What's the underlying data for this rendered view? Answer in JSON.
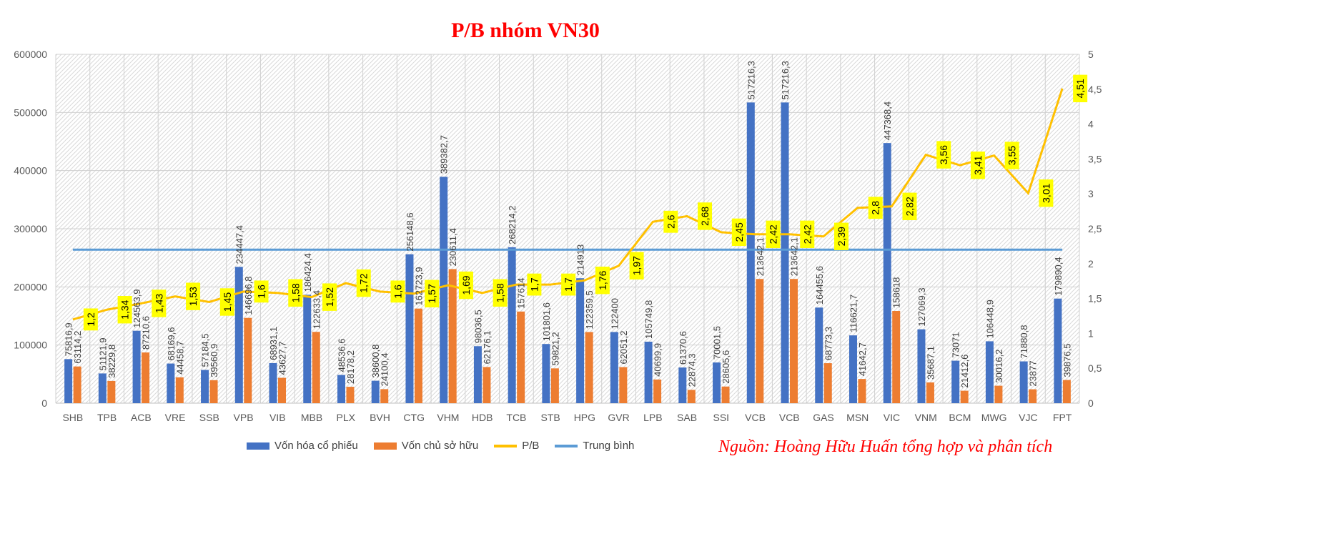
{
  "title": "P/B nhóm VN30",
  "source": "Nguồn: Hoàng Hữu Huấn tổng hợp và phân tích",
  "colors": {
    "title": "#ff0000",
    "source": "#ff0000",
    "market_cap": "#4472c4",
    "equity": "#ed7d31",
    "pb": "#ffc000",
    "average": "#5b9bd5",
    "label_box": "#ffff00",
    "axis_text": "#595959"
  },
  "legend": [
    {
      "label": "Vốn hóa cổ phiếu",
      "kind": "bar",
      "color": "#4472c4"
    },
    {
      "label": "Vốn chủ sở hữu",
      "kind": "bar",
      "color": "#ed7d31"
    },
    {
      "label": "P/B",
      "kind": "line",
      "color": "#ffc000"
    },
    {
      "label": "Trung bình",
      "kind": "line",
      "color": "#5b9bd5"
    }
  ],
  "chart_data": {
    "type": "bar",
    "categories": [
      "SHB",
      "TPB",
      "ACB",
      "VRE",
      "SSB",
      "VPB",
      "VIB",
      "MBB",
      "PLX",
      "BVH",
      "CTG",
      "VHM",
      "HDB",
      "TCB",
      "STB",
      "HPG",
      "GVR",
      "LPB",
      "SAB",
      "SSI",
      "VCB",
      "VCB",
      "GAS",
      "MSN",
      "VIC",
      "VNM",
      "BCM",
      "MWG",
      "VJC",
      "FPT"
    ],
    "series": [
      {
        "name": "Vốn hóa cổ phiếu",
        "type": "bar",
        "axis": "left",
        "values": [
          75816.9,
          51121.9,
          124563.9,
          68169.6,
          57184.5,
          234447.4,
          68931.1,
          186424.4,
          48536.6,
          38600.8,
          256148.6,
          389382.7,
          98036.5,
          268214.2,
          101801.6,
          214913,
          122400,
          105749.8,
          61370.6,
          70001.5,
          517216.3,
          517216.3,
          164455.6,
          116621.7,
          447368.4,
          127069.3,
          73071,
          106448.9,
          71880.8,
          179890.4
        ],
        "labels": [
          "75816,9",
          "51121,9",
          "124563,9",
          "68169,6",
          "57184,5",
          "234447,4",
          "68931,1",
          "186424,4",
          "48536,6",
          "38600,8",
          "256148,6",
          "389382,7",
          "98036,5",
          "268214,2",
          "101801,6",
          "214913",
          "122400",
          "105749,8",
          "61370,6",
          "70001,5",
          "517216,3",
          "517216,3",
          "164455,6",
          "116621,7",
          "447368,4",
          "127069,3",
          "73071",
          "106448,9",
          "71880,8",
          "179890,4"
        ]
      },
      {
        "name": "Vốn chủ sở hữu",
        "type": "bar",
        "axis": "left",
        "values": [
          63114.2,
          38229.8,
          87210.6,
          44458.7,
          39560.9,
          146696.8,
          43627.7,
          122633.4,
          28178.2,
          24100.4,
          162723.9,
          230611.4,
          62176.1,
          157614,
          59821.2,
          122359.5,
          62051.2,
          40699.9,
          22874.3,
          28605.6,
          213642.1,
          213642.1,
          68773.3,
          41642.7,
          158618,
          35687.1,
          21412.6,
          30016.2,
          23877,
          39876.5
        ],
        "labels": [
          "63114,2",
          "38229,8",
          "87210,6",
          "44458,7",
          "39560,9",
          "146696,8",
          "43627,7",
          "122633,4",
          "28178,2",
          "24100,4",
          "162723,9",
          "230611,4",
          "62176,1",
          "157614",
          "59821,2",
          "122359,5",
          "62051,2",
          "40699,9",
          "22874,3",
          "28605,6",
          "213642,1",
          "213642,1",
          "68773,3",
          "41642,7",
          "158618",
          "35687,1",
          "21412,6",
          "30016,2",
          "23877",
          "39876,5"
        ]
      },
      {
        "name": "P/B",
        "type": "line",
        "axis": "right",
        "values": [
          1.2,
          1.34,
          1.43,
          1.53,
          1.45,
          1.6,
          1.58,
          1.52,
          1.72,
          1.6,
          1.57,
          1.69,
          1.58,
          1.7,
          1.7,
          1.76,
          1.97,
          2.6,
          2.68,
          2.45,
          2.42,
          2.42,
          2.39,
          2.8,
          2.82,
          3.56,
          3.41,
          3.55,
          3.01,
          4.51
        ],
        "labels": [
          "1,2",
          "1,34",
          "1,43",
          "1,53",
          "1,45",
          "1,6",
          "1,58",
          "1,52",
          "1,72",
          "1,6",
          "1,57",
          "1,69",
          "1,58",
          "1,7",
          "1,7",
          "1,76",
          "1,97",
          "2,6",
          "2,68",
          "2,45",
          "2,42",
          "2,42",
          "2,39",
          "2,8",
          "2,82",
          "3,56",
          "3,41",
          "3,55",
          "3,01",
          "4,51"
        ]
      },
      {
        "name": "Trung bình",
        "type": "line",
        "axis": "right",
        "values": [
          2.2,
          2.2,
          2.2,
          2.2,
          2.2,
          2.2,
          2.2,
          2.2,
          2.2,
          2.2,
          2.2,
          2.2,
          2.2,
          2.2,
          2.2,
          2.2,
          2.2,
          2.2,
          2.2,
          2.2,
          2.2,
          2.2,
          2.2,
          2.2,
          2.2,
          2.2,
          2.2,
          2.2,
          2.2,
          2.2
        ]
      }
    ],
    "left_axis": {
      "min": 0,
      "max": 600000,
      "ticks": [
        "0",
        "100000",
        "200000",
        "300000",
        "400000",
        "500000",
        "600000"
      ]
    },
    "right_axis": {
      "min": 0,
      "max": 5,
      "ticks": [
        "0",
        "0,5",
        "1",
        "1,5",
        "2",
        "2,5",
        "3",
        "3,5",
        "4",
        "4,5",
        "5"
      ]
    },
    "grid": true,
    "legend_position": "bottom"
  }
}
